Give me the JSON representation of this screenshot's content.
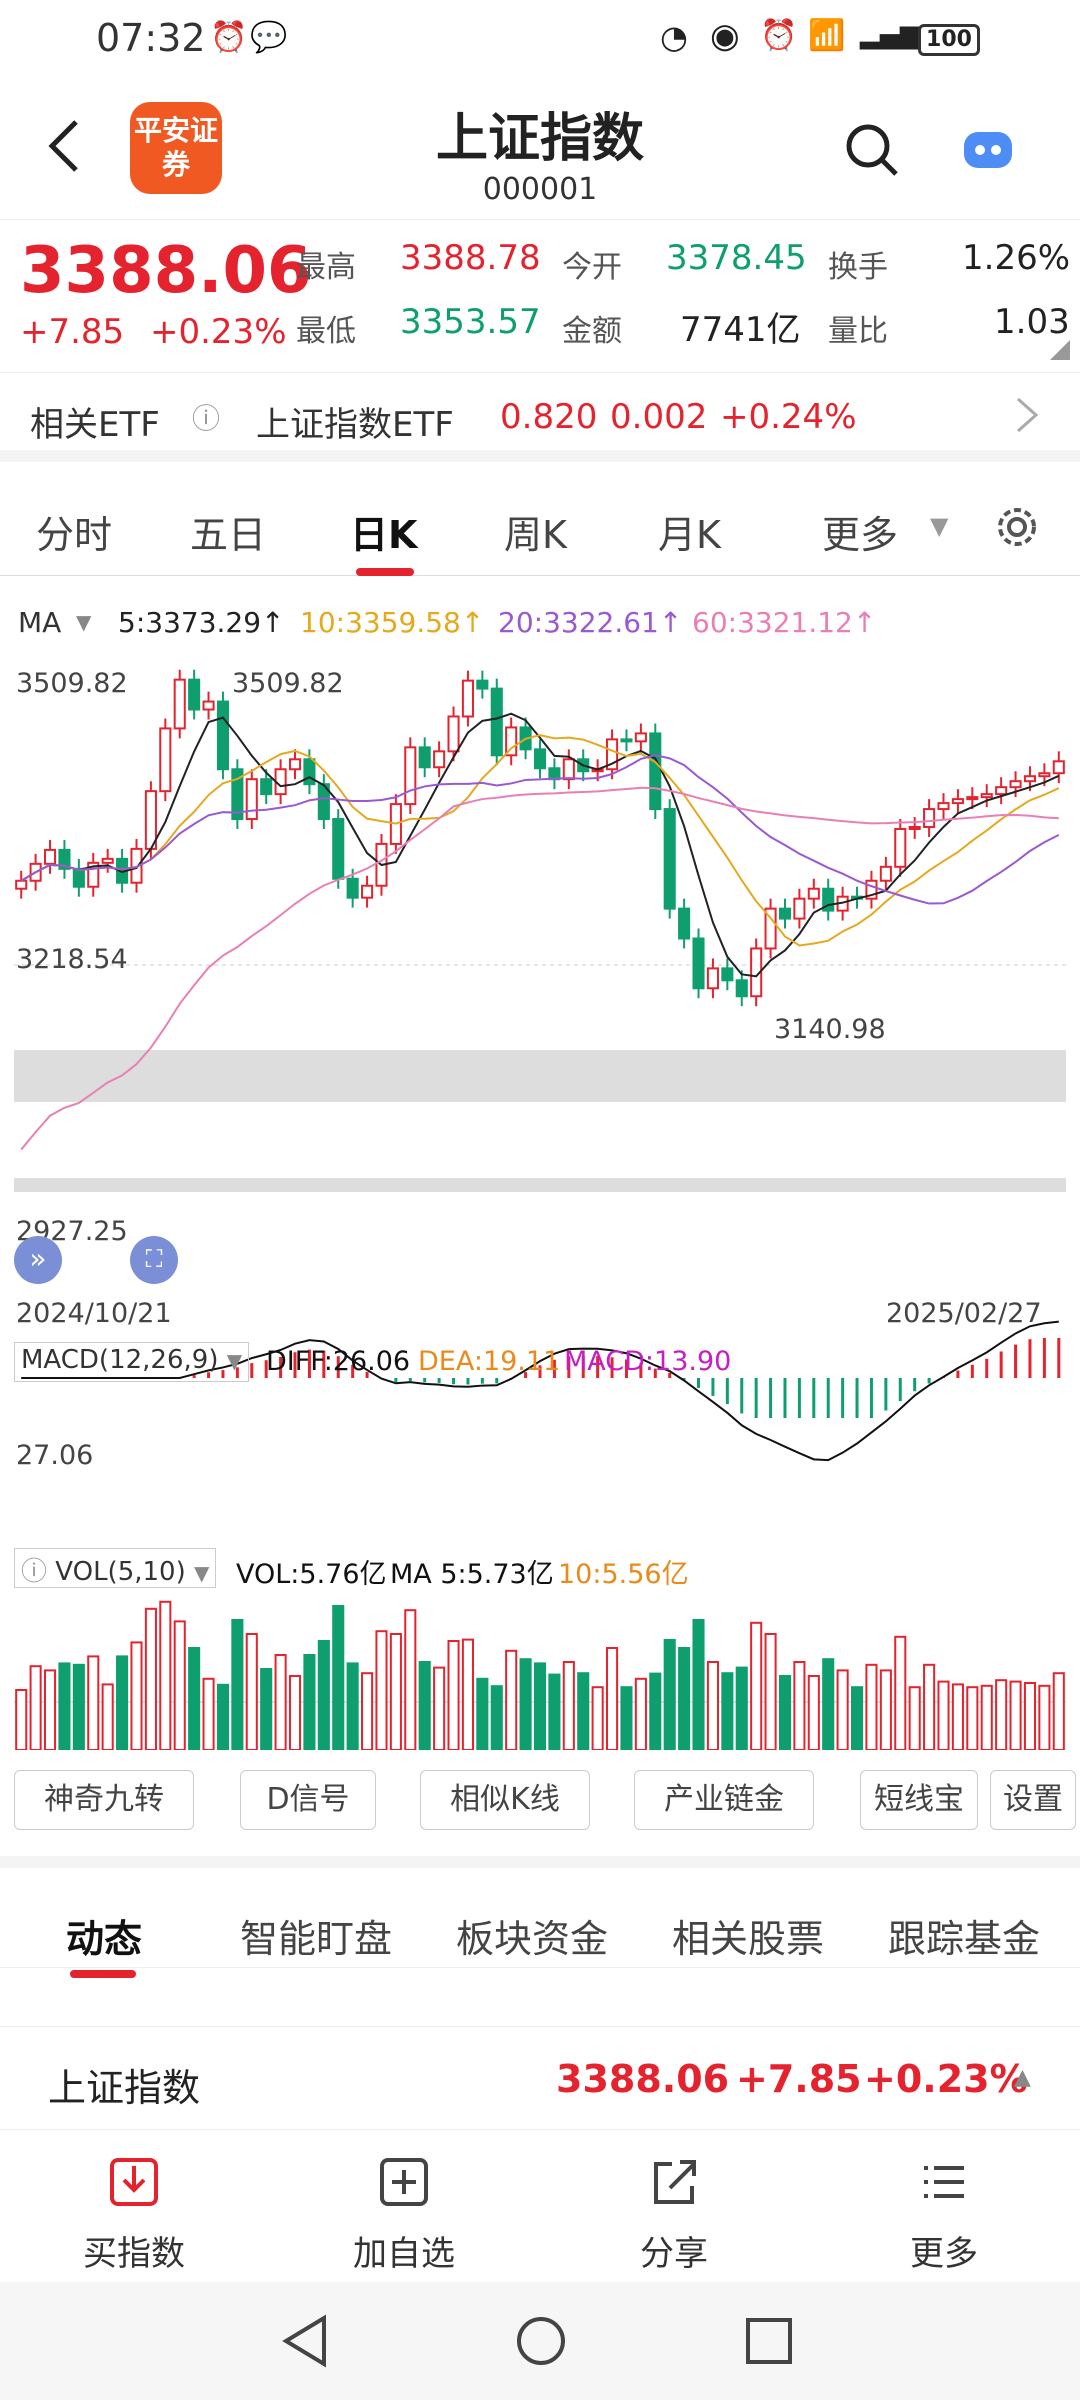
{
  "status_bar": {
    "time": "07:32",
    "battery": "100"
  },
  "header": {
    "logo_text": "平安证券",
    "title": "上证指数",
    "code": "000001"
  },
  "quote": {
    "price": "3388.06",
    "change": "+7.85",
    "change_pct": "+0.23%",
    "high_label": "最高",
    "high": "3388.78",
    "open_label": "今开",
    "open": "3378.45",
    "turnover_label": "换手",
    "turnover": "1.26%",
    "low_label": "最低",
    "low": "3353.57",
    "amount_label": "金额",
    "amount": "7741亿",
    "vol_ratio_label": "量比",
    "vol_ratio": "1.03"
  },
  "etf": {
    "label": "相关ETF",
    "name": "上证指数ETF",
    "price": "0.820",
    "change": "0.002",
    "pct": "+0.24%"
  },
  "k_tabs": [
    "分时",
    "五日",
    "日K",
    "周K",
    "月K",
    "更多"
  ],
  "ma": {
    "label": "MA",
    "ma5": "5:3373.29↑",
    "ma10": "10:3359.58↑",
    "ma20": "20:3322.61↑",
    "ma60": "60:3321.12↑"
  },
  "axis": {
    "top": "3509.82",
    "mid": "3218.54",
    "low": "2927.25",
    "date_start": "2024/10/21",
    "date_end": "2025/02/27",
    "high_mark": "3509.82",
    "low_mark": "3140.98"
  },
  "macd": {
    "label": "MACD(12,26,9)",
    "diff": "DIFF:26.06",
    "dea": "DEA:19.11",
    "macd": "MACD:13.90",
    "axis": "27.06"
  },
  "vol": {
    "label": "VOL(5,10)",
    "vol": "VOL:5.76亿",
    "ma5": "MA 5:5.73亿",
    "ma10": "10:5.56亿"
  },
  "tools": [
    "神奇九转",
    "D信号",
    "相似K线",
    "产业链金",
    "短线宝",
    "设置"
  ],
  "bottom_tabs": [
    "动态",
    "智能盯盘",
    "板块资金",
    "相关股票",
    "跟踪基金"
  ],
  "summary": {
    "name": "上证指数",
    "price": "3388.06",
    "change": "+7.85",
    "pct": "+0.23%"
  },
  "actions": [
    "买指数",
    "加自选",
    "分享",
    "更多"
  ],
  "chart_data": {
    "type": "candlestick",
    "x_range": [
      "2024/10/21",
      "2025/02/27"
    ],
    "ylim": [
      2927.25,
      3509.82
    ],
    "closes": [
      3268,
      3285,
      3299,
      3280,
      3262,
      3286,
      3290,
      3266,
      3300,
      3358,
      3421,
      3470,
      3440,
      3448,
      3380,
      3330,
      3370,
      3355,
      3380,
      3390,
      3365,
      3330,
      3270,
      3251,
      3263,
      3305,
      3345,
      3402,
      3382,
      3398,
      3433,
      3469,
      3461,
      3394,
      3422,
      3400,
      3381,
      3370,
      3390,
      3378,
      3380,
      3410,
      3408,
      3416,
      3340,
      3240,
      3210,
      3160,
      3180,
      3168,
      3152,
      3200,
      3240,
      3230,
      3250,
      3260,
      3238,
      3252,
      3250,
      3268,
      3282,
      3320,
      3322,
      3340,
      3346,
      3350,
      3352,
      3355,
      3362,
      3368,
      3373,
      3376,
      3388
    ],
    "ma_values": {
      "ma5": 3373.29,
      "ma10": 3359.58,
      "ma20": 3322.61,
      "ma60": 3321.12
    }
  }
}
